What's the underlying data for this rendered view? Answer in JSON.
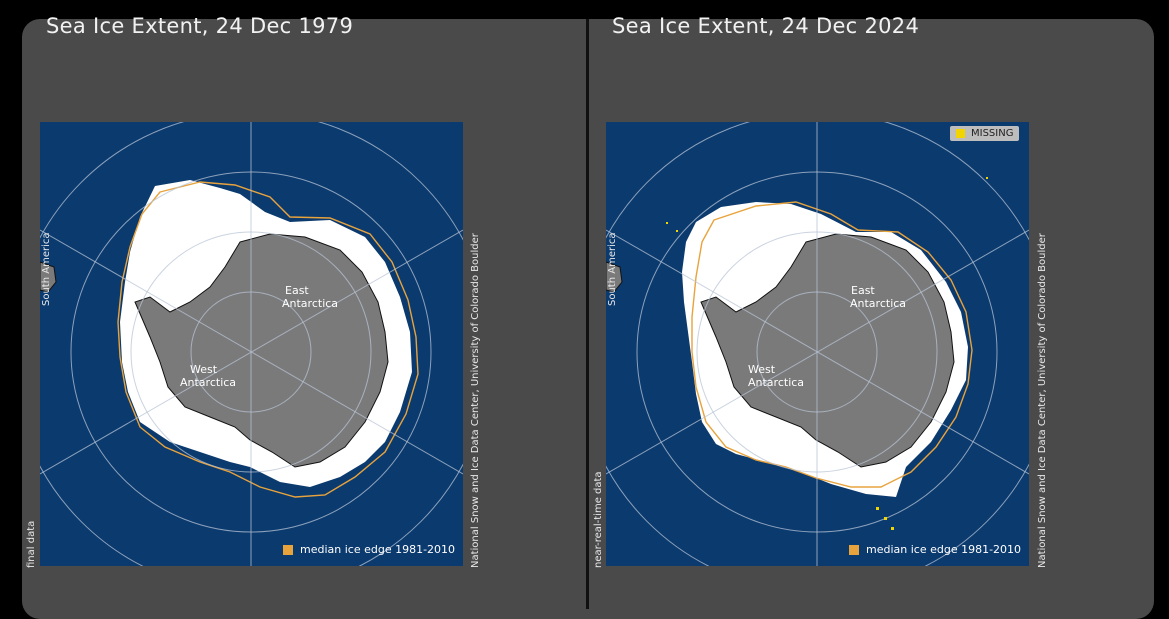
{
  "colors": {
    "ocean": "#0b3a6e",
    "land": "#7a7a7a",
    "ice": "#ffffff",
    "median_edge": "#e8a33d",
    "missing": "#f2d500",
    "grid": "#b8c4d6"
  },
  "left_panel": {
    "title": "Sea Ice Extent, 24 Dec 1979",
    "data_status": "final data",
    "region_label_west_1": "West",
    "region_label_west_2": "Antarctica",
    "region_label_east_1": "East",
    "region_label_east_2": "Antarctica",
    "continent_label": "South America",
    "legend_label": "median ice edge 1981-2010",
    "credit": "National Snow and Ice Data Center, University of Colorado Boulder"
  },
  "right_panel": {
    "title": "Sea Ice Extent, 24 Dec 2024",
    "data_status": "near-real-time data",
    "region_label_west_1": "West",
    "region_label_west_2": "Antarctica",
    "region_label_east_1": "East",
    "region_label_east_2": "Antarctica",
    "continent_label": "South America",
    "legend_label": "median ice edge 1981-2010",
    "missing_label": "MISSING",
    "credit": "National Snow and Ice Data Center, University of Colorado Boulder"
  }
}
